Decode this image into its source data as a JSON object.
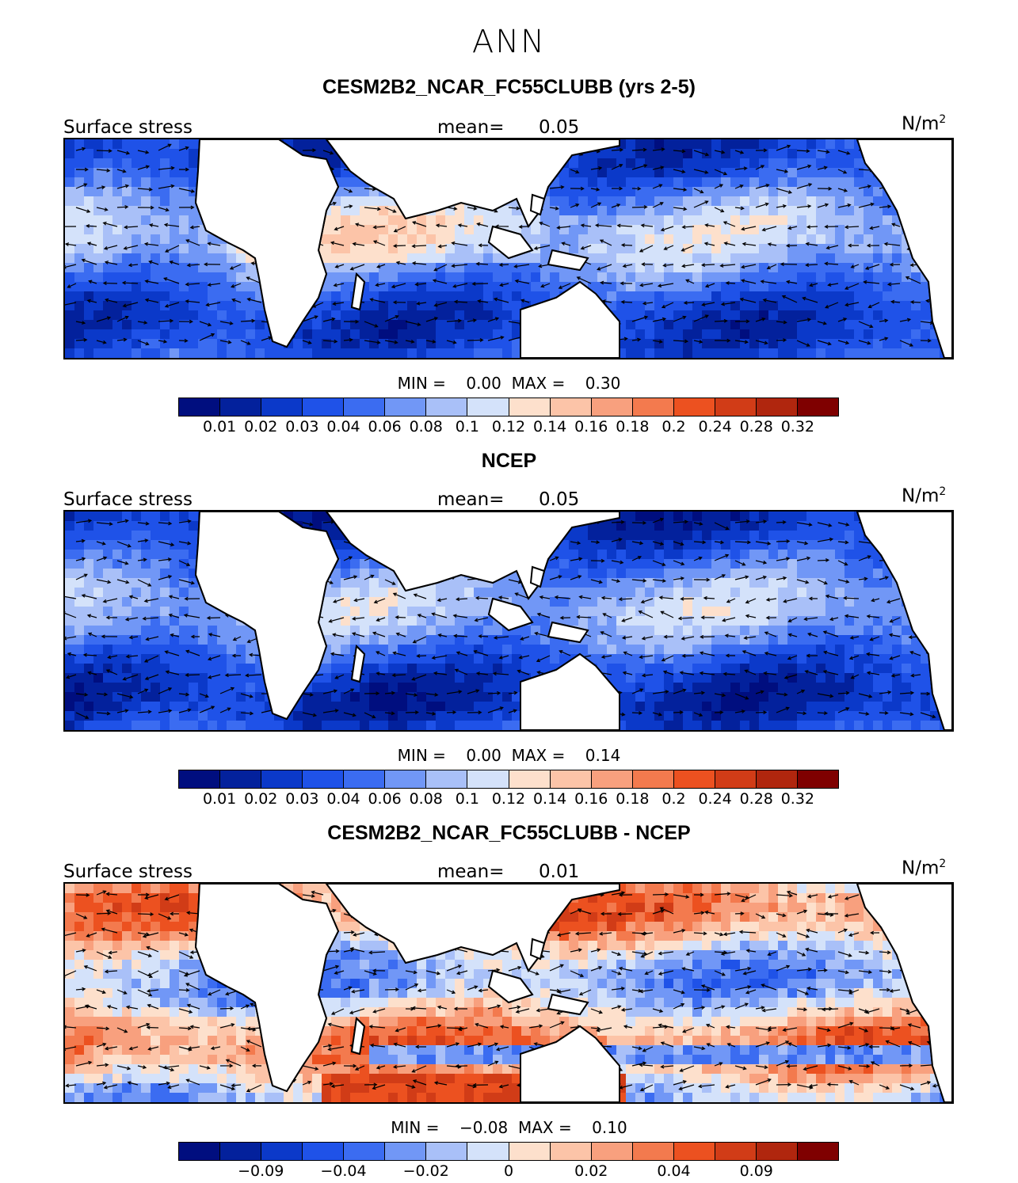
{
  "page": {
    "season": "ANN"
  },
  "colors": {
    "abs_scale": [
      "#000e7f",
      "#03219c",
      "#0b39c9",
      "#1f52e8",
      "#3b6cf1",
      "#7197f6",
      "#a9c0f8",
      "#d4e2fa",
      "#fde0cc",
      "#fcc4a8",
      "#f8a07e",
      "#f37a4e",
      "#ec5120",
      "#d13c17",
      "#b0260e",
      "#7f0000"
    ],
    "diff_scale": [
      "#000e7f",
      "#03219c",
      "#0b39c9",
      "#1f52e8",
      "#3b6cf1",
      "#7197f6",
      "#a9c0f8",
      "#d4e2fa",
      "#fde0cc",
      "#fcc4a8",
      "#f8a07e",
      "#f37a4e",
      "#ec5120",
      "#d13c17",
      "#b0260e",
      "#7f0000"
    ],
    "land": "#ffffff",
    "coast": "#000000"
  },
  "panels": [
    {
      "title": "CESM2B2_NCAR_FC55CLUBB (yrs 2-5)",
      "variable": "Surface stress",
      "mean_label": "mean=",
      "mean_value": "0.05",
      "units": "N/m",
      "units_sup": "2",
      "min_label": "MIN =",
      "min_value": "0.00",
      "max_label": "MAX =",
      "max_value": "0.30",
      "colorbar": "abs_scale",
      "ticks": [
        "0.01",
        "0.02",
        "0.03",
        "0.04",
        "0.06",
        "0.08",
        "0.1",
        "0.12",
        "0.14",
        "0.16",
        "0.18",
        "0.2",
        "0.24",
        "0.28",
        "0.32"
      ]
    },
    {
      "title": "NCEP",
      "variable": "Surface stress",
      "mean_label": "mean=",
      "mean_value": "0.05",
      "units": "N/m",
      "units_sup": "2",
      "min_label": "MIN =",
      "min_value": "0.00",
      "max_label": "MAX =",
      "max_value": "0.14",
      "colorbar": "abs_scale",
      "ticks": [
        "0.01",
        "0.02",
        "0.03",
        "0.04",
        "0.06",
        "0.08",
        "0.1",
        "0.12",
        "0.14",
        "0.16",
        "0.18",
        "0.2",
        "0.24",
        "0.28",
        "0.32"
      ]
    },
    {
      "title": "CESM2B2_NCAR_FC55CLUBB - NCEP",
      "variable": "Surface stress",
      "mean_label": "mean=",
      "mean_value": "0.01",
      "units": "N/m",
      "units_sup": "2",
      "min_label": "MIN =",
      "min_value": "−0.08",
      "max_label": "MAX =",
      "max_value": "0.10",
      "colorbar": "diff_scale",
      "ticks": [
        "−0.09",
        "−0.04",
        "−0.02",
        "0",
        "0.02",
        "0.04",
        "0.09"
      ]
    }
  ]
}
